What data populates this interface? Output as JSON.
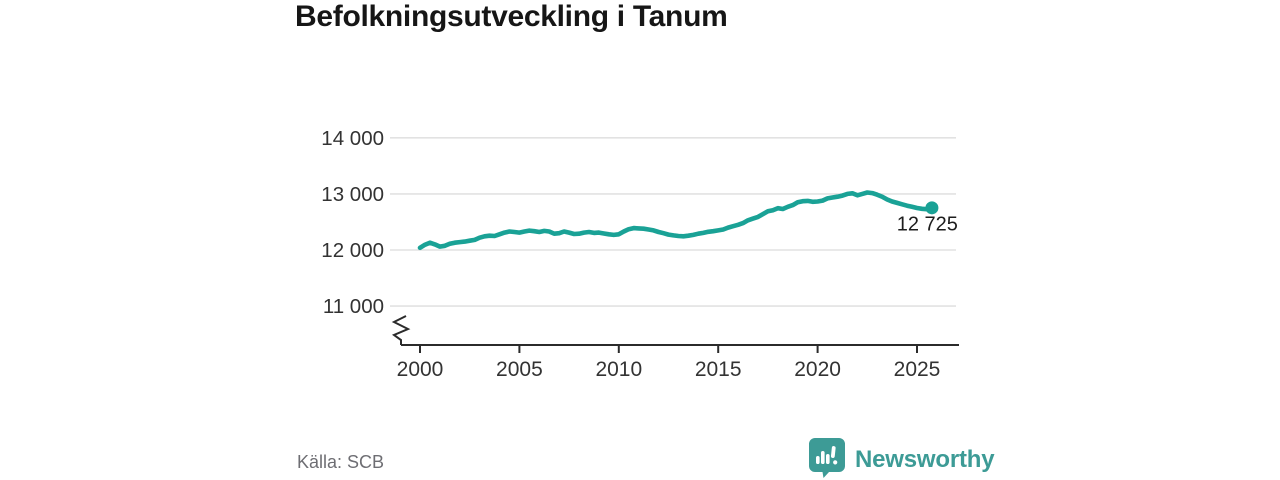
{
  "title": "Befolkningsutveckling i Tanum",
  "source": "Källa: SCB",
  "logo": {
    "text": "Newsworthy"
  },
  "colors": {
    "line": "#1aa296",
    "grid": "#e2e2e2",
    "axis": "#2b2b2b",
    "tick_text": "#333333",
    "title_text": "#161616",
    "source_text": "#6e6e73",
    "annotation_text": "#1d1d1d",
    "logo_teal": "#3d9b96"
  },
  "chart_data": {
    "type": "line",
    "title": "Befolkningsutveckling i Tanum",
    "xlabel": "",
    "ylabel": "",
    "x_start": 2000,
    "x_step": 0.25,
    "values": [
      12040,
      12095,
      12130,
      12100,
      12060,
      12075,
      12110,
      12130,
      12140,
      12150,
      12165,
      12180,
      12220,
      12245,
      12255,
      12250,
      12280,
      12310,
      12330,
      12320,
      12310,
      12330,
      12345,
      12335,
      12320,
      12340,
      12330,
      12290,
      12300,
      12330,
      12310,
      12285,
      12290,
      12310,
      12320,
      12305,
      12310,
      12295,
      12280,
      12270,
      12280,
      12330,
      12370,
      12390,
      12385,
      12380,
      12365,
      12350,
      12320,
      12300,
      12275,
      12260,
      12250,
      12245,
      12255,
      12270,
      12290,
      12305,
      12325,
      12335,
      12350,
      12365,
      12400,
      12425,
      12450,
      12480,
      12530,
      12560,
      12590,
      12640,
      12690,
      12710,
      12745,
      12730,
      12770,
      12800,
      12850,
      12870,
      12875,
      12860,
      12865,
      12880,
      12920,
      12935,
      12950,
      12970,
      13000,
      13010,
      12975,
      13000,
      13025,
      13015,
      12985,
      12950,
      12900,
      12865,
      12840,
      12815,
      12790,
      12770,
      12748,
      12735,
      12728,
      12725
    ],
    "last_point_label": "12 725",
    "yticks": [
      11000,
      12000,
      13000,
      14000
    ],
    "ytick_labels": [
      "11 000",
      "12 000",
      "13 000",
      "14 000"
    ],
    "xticks": [
      2000,
      2005,
      2010,
      2015,
      2020,
      2025
    ],
    "xtick_labels": [
      "2000",
      "2005",
      "2010",
      "2015",
      "2020",
      "2025"
    ],
    "axis_break": true,
    "grid": true,
    "legend": "none"
  }
}
